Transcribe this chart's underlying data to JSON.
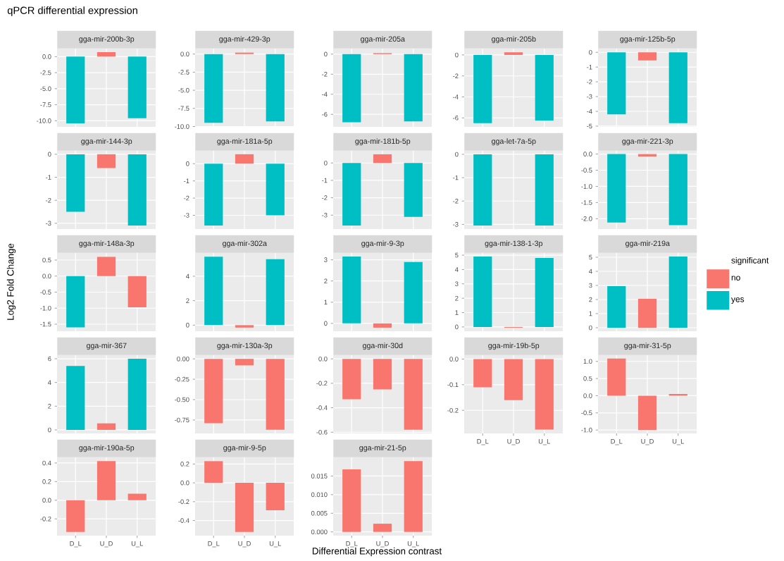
{
  "chart_data": [
    {
      "type": "other",
      "title": "qPCR differential expression",
      "xlabel": "Differential Expression contrast",
      "ylabel": "Log2 Fold Change"
    },
    {
      "type": "bar",
      "title": "gga-mir-200b-3p",
      "categories": [
        null,
        null,
        null
      ],
      "series": [
        {
          "color": "#f8766d",
          "values": [
            null,
            0.7,
            null
          ]
        },
        {
          "color": "#00bfc4",
          "values": [
            -10.4,
            null,
            -9.6
          ]
        }
      ],
      "ylim": [
        -10.95,
        1.25
      ],
      "yticks": [
        {
          "value": -10,
          "label": "-10.0"
        },
        -7.5,
        {
          "value": -5,
          "label": "-5.0"
        },
        -2.5,
        {
          "value": 0,
          "label": "0.0"
        }
      ],
      "grid": true,
      "tick_labels": "y"
    },
    {
      "type": "bar",
      "title": "gga-mir-429-3p",
      "categories": [
        null,
        null,
        null
      ],
      "series": [
        {
          "color": "#f8766d",
          "values": [
            null,
            0.2,
            null
          ]
        },
        {
          "color": "#00bfc4",
          "values": [
            -9.5,
            null,
            -9.3
          ]
        }
      ],
      "ylim": [
        -10.05,
        0.75
      ],
      "yticks": [
        {
          "value": -10,
          "label": "-10.0"
        },
        -7.5,
        {
          "value": -5,
          "label": "-5.0"
        },
        -2.5,
        {
          "value": 0,
          "label": "0.0"
        }
      ],
      "grid": true,
      "tick_labels": "y"
    },
    {
      "type": "bar",
      "title": "gga-mir-205a",
      "categories": [
        null,
        null,
        null
      ],
      "series": [
        {
          "color": "#f8766d",
          "values": [
            null,
            0.1,
            null
          ]
        },
        {
          "color": "#00bfc4",
          "values": [
            -6.8,
            null,
            -6.7
          ]
        }
      ],
      "ylim": [
        -7.25,
        0.55
      ],
      "yticks": [
        -6,
        -4,
        -2,
        0
      ],
      "grid": true,
      "tick_labels": "y"
    },
    {
      "type": "bar",
      "title": "gga-mir-205b",
      "categories": [
        null,
        null,
        null
      ],
      "series": [
        {
          "color": "#f8766d",
          "values": [
            null,
            0.25,
            null
          ]
        },
        {
          "color": "#00bfc4",
          "values": [
            -6.5,
            null,
            -6.25
          ]
        }
      ],
      "ylim": [
        -6.85,
        0.6
      ],
      "yticks": [
        -6,
        -4,
        -2,
        0
      ],
      "grid": true,
      "tick_labels": "y"
    },
    {
      "type": "bar",
      "title": "gga-mir-125b-5p",
      "categories": [
        null,
        null,
        null
      ],
      "series": [
        {
          "color": "#f8766d",
          "values": [
            null,
            -0.55,
            null
          ]
        },
        {
          "color": "#00bfc4",
          "values": [
            -4.2,
            null,
            -4.8
          ]
        }
      ],
      "ylim": [
        -5.05,
        0.25
      ],
      "yticks": [
        -5,
        -4,
        -3,
        -2,
        -1,
        0
      ],
      "grid": true,
      "tick_labels": "y"
    },
    {
      "type": "bar",
      "title": "gga-mir-144-3p",
      "categories": [
        null,
        null,
        null
      ],
      "series": [
        {
          "color": "#f8766d",
          "values": [
            null,
            -0.6,
            null
          ]
        },
        {
          "color": "#00bfc4",
          "values": [
            -2.5,
            null,
            -3.1
          ]
        }
      ],
      "ylim": [
        -3.25,
        0.15
      ],
      "yticks": [
        -3,
        -2,
        -1,
        0
      ],
      "grid": true,
      "tick_labels": "y"
    },
    {
      "type": "bar",
      "title": "gga-mir-181a-5p",
      "categories": [
        null,
        null,
        null
      ],
      "series": [
        {
          "color": "#f8766d",
          "values": [
            null,
            0.55,
            null
          ]
        },
        {
          "color": "#00bfc4",
          "values": [
            -3.6,
            null,
            -3.0
          ]
        }
      ],
      "ylim": [
        -3.8,
        0.75
      ],
      "yticks": [
        -3,
        -2,
        -1,
        0
      ],
      "grid": true,
      "tick_labels": "y"
    },
    {
      "type": "bar",
      "title": "gga-mir-181b-5p",
      "categories": [
        null,
        null,
        null
      ],
      "series": [
        {
          "color": "#f8766d",
          "values": [
            null,
            0.5,
            null
          ]
        },
        {
          "color": "#00bfc4",
          "values": [
            -3.6,
            null,
            -3.1
          ]
        }
      ],
      "ylim": [
        -3.8,
        0.7
      ],
      "yticks": [
        -3,
        -2,
        -1,
        0
      ],
      "grid": true,
      "tick_labels": "y"
    },
    {
      "type": "bar",
      "title": "gga-let-7a-5p",
      "categories": [
        null,
        null,
        null
      ],
      "series": [
        {
          "color": "#00bfc4",
          "values": [
            -3.05,
            null,
            -3.05
          ]
        }
      ],
      "ylim": [
        -3.2,
        0.15
      ],
      "yticks": [
        -3,
        -2,
        -1,
        0
      ],
      "grid": true,
      "tick_labels": "y"
    },
    {
      "type": "bar",
      "title": "gga-mir-221-3p",
      "categories": [
        null,
        null,
        null
      ],
      "series": [
        {
          "color": "#f8766d",
          "values": [
            null,
            -0.08,
            null
          ]
        },
        {
          "color": "#00bfc4",
          "values": [
            -2.12,
            null,
            -2.2
          ]
        }
      ],
      "ylim": [
        -2.32,
        0.1
      ],
      "yticks": [
        {
          "value": -2,
          "label": "-2.0"
        },
        -1.5,
        {
          "value": -1,
          "label": "-1.0"
        },
        -0.5,
        {
          "value": 0,
          "label": "0.0"
        }
      ],
      "grid": true,
      "tick_labels": "y"
    },
    {
      "type": "bar",
      "title": "gga-mir-148a-3p",
      "categories": [
        null,
        null,
        null
      ],
      "series": [
        {
          "color": "#f8766d",
          "values": [
            null,
            0.6,
            -0.97
          ]
        },
        {
          "color": "#00bfc4",
          "values": [
            -1.6,
            null,
            null
          ]
        }
      ],
      "ylim": [
        -1.72,
        0.72
      ],
      "yticks": [
        -1.5,
        {
          "value": -1,
          "label": "-1.0"
        },
        -0.5,
        {
          "value": 0,
          "label": "0.0"
        },
        0.5
      ],
      "grid": true,
      "tick_labels": "y"
    },
    {
      "type": "bar",
      "title": "gga-mir-302a",
      "categories": [
        null,
        null,
        null
      ],
      "series": [
        {
          "color": "#f8766d",
          "values": [
            null,
            -0.2,
            null
          ]
        },
        {
          "color": "#00bfc4",
          "values": [
            5.6,
            null,
            5.4
          ]
        }
      ],
      "ylim": [
        -0.5,
        5.9
      ],
      "yticks": [
        0,
        2,
        4
      ],
      "grid": true,
      "tick_labels": "y"
    },
    {
      "type": "bar",
      "title": "gga-mir-9-3p",
      "categories": [
        null,
        null,
        null
      ],
      "series": [
        {
          "color": "#f8766d",
          "values": [
            null,
            -0.2,
            null
          ]
        },
        {
          "color": "#00bfc4",
          "values": [
            3.15,
            null,
            2.9
          ]
        }
      ],
      "ylim": [
        -0.37,
        3.32
      ],
      "yticks": [
        0,
        1,
        2,
        3
      ],
      "grid": true,
      "tick_labels": "y"
    },
    {
      "type": "bar",
      "title": "gga-mir-138-1-3p",
      "categories": [
        null,
        null,
        null
      ],
      "series": [
        {
          "color": "#f8766d",
          "values": [
            null,
            -0.05,
            null
          ]
        },
        {
          "color": "#00bfc4",
          "values": [
            4.9,
            null,
            4.8
          ]
        }
      ],
      "ylim": [
        -0.3,
        5.15
      ],
      "yticks": [
        0,
        1,
        2,
        3,
        4,
        5
      ],
      "grid": true,
      "tick_labels": "y"
    },
    {
      "type": "bar",
      "title": "gga-mir-219a",
      "categories": [
        null,
        null,
        null
      ],
      "legend": "right",
      "legend_title": "significant",
      "series": [
        {
          "name": "no",
          "color": "#f8766d",
          "values": [
            null,
            2.05,
            null
          ]
        },
        {
          "name": "yes",
          "color": "#00bfc4",
          "values": [
            2.95,
            null,
            5.05
          ]
        }
      ],
      "ylim": [
        -0.25,
        5.3
      ],
      "yticks": [
        0,
        1,
        2,
        3,
        4,
        5
      ],
      "grid": true,
      "tick_labels": "y"
    },
    {
      "type": "bar",
      "title": "gga-mir-367",
      "categories": [
        null,
        null,
        null
      ],
      "series": [
        {
          "color": "#f8766d",
          "values": [
            null,
            0.55,
            null
          ]
        },
        {
          "color": "#00bfc4",
          "values": [
            5.4,
            null,
            6.0
          ]
        }
      ],
      "ylim": [
        -0.3,
        6.3
      ],
      "yticks": [
        0,
        2,
        4,
        6
      ],
      "grid": true,
      "tick_labels": "y"
    },
    {
      "type": "bar",
      "title": "gga-mir-130a-3p",
      "categories": [
        null,
        null,
        null
      ],
      "series": [
        {
          "color": "#f8766d",
          "values": [
            -0.79,
            -0.08,
            -0.87
          ]
        }
      ],
      "ylim": [
        -0.915,
        0.045
      ],
      "yticks": [
        -0.75,
        {
          "value": -0.5,
          "label": "-0.50"
        },
        -0.25,
        {
          "value": 0,
          "label": "0.00"
        }
      ],
      "grid": true,
      "tick_labels": "y"
    },
    {
      "type": "bar",
      "title": "gga-mir-30d",
      "categories": [
        null,
        null,
        null
      ],
      "series": [
        {
          "color": "#f8766d",
          "values": [
            -0.33,
            -0.25,
            -0.58
          ]
        }
      ],
      "ylim": [
        -0.61,
        0.03
      ],
      "yticks": [
        -0.6,
        -0.4,
        -0.2,
        {
          "value": 0,
          "label": "0.0"
        }
      ],
      "grid": true,
      "tick_labels": "y"
    },
    {
      "type": "bar",
      "title": "gga-mir-19b-5p",
      "categories": [
        "D_L",
        "U_D",
        "U_L"
      ],
      "series": [
        {
          "color": "#f8766d",
          "values": [
            -0.11,
            -0.16,
            -0.275
          ]
        }
      ],
      "ylim": [
        -0.29,
        0.015
      ],
      "yticks": [
        -0.2,
        -0.1,
        {
          "value": 0,
          "label": "0.0"
        }
      ],
      "grid": true
    },
    {
      "type": "bar",
      "title": "gga-mir-31-5p",
      "categories": [
        "D_L",
        "U_D",
        "U_L"
      ],
      "series": [
        {
          "color": "#f8766d",
          "values": [
            1.08,
            -1.0,
            0.05
          ]
        }
      ],
      "ylim": [
        -1.1,
        1.18
      ],
      "yticks": [
        {
          "value": -1,
          "label": "-1.0"
        },
        -0.5,
        {
          "value": 0,
          "label": "0.0"
        },
        0.5,
        {
          "value": 1,
          "label": "1.0"
        }
      ],
      "grid": true
    },
    {
      "type": "bar",
      "title": "gga-mir-190a-5p",
      "categories": [
        "D_L",
        "U_D",
        "U_L"
      ],
      "series": [
        {
          "color": "#f8766d",
          "values": [
            -0.34,
            0.42,
            0.07
          ]
        }
      ],
      "ylim": [
        -0.38,
        0.46
      ],
      "yticks": [
        -0.2,
        {
          "value": 0,
          "label": "0.0"
        },
        0.2,
        0.4
      ],
      "grid": true
    },
    {
      "type": "bar",
      "title": "gga-mir-9-5p",
      "categories": [
        "D_L",
        "U_D",
        "U_L"
      ],
      "series": [
        {
          "color": "#f8766d",
          "values": [
            0.23,
            -0.52,
            -0.29
          ]
        }
      ],
      "ylim": [
        -0.56,
        0.27
      ],
      "yticks": [
        -0.4,
        -0.2,
        {
          "value": 0,
          "label": "0.0"
        },
        0.2
      ],
      "grid": true
    },
    {
      "type": "bar",
      "title": "gga-mir-21-5p",
      "categories": [
        "D_L",
        "U_D",
        "U_L"
      ],
      "series": [
        {
          "color": "#f8766d",
          "values": [
            0.0168,
            0.0022,
            0.019
          ]
        }
      ],
      "ylim": [
        -0.001,
        0.02
      ],
      "yticks": [
        {
          "value": 0,
          "label": "0.000"
        },
        0.005,
        {
          "value": 0.01,
          "label": "0.010"
        },
        0.015
      ],
      "grid": true
    }
  ]
}
